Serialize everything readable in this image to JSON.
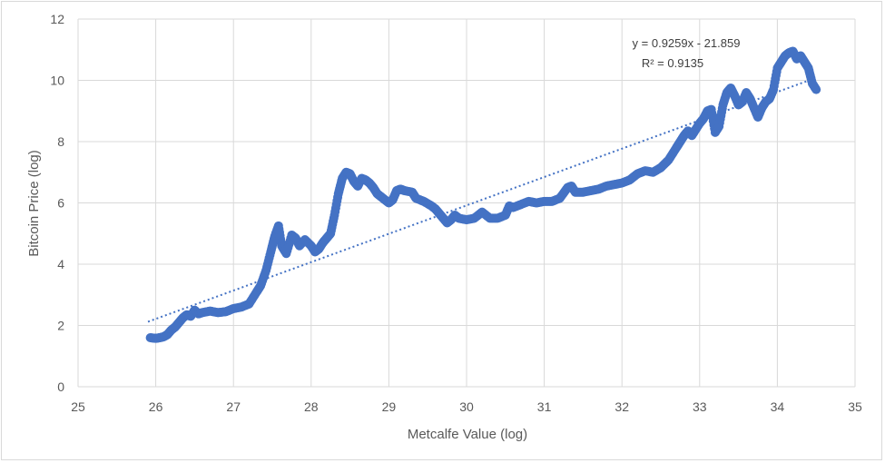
{
  "chart_data": {
    "type": "scatter",
    "title": "",
    "xlabel": "Metcalfe Value (log)",
    "ylabel": "Bitcoin Price (log)",
    "xlim": [
      25,
      35
    ],
    "ylim": [
      0,
      12
    ],
    "x_ticks": [
      "25",
      "26",
      "27",
      "28",
      "29",
      "30",
      "31",
      "32",
      "33",
      "34",
      "35"
    ],
    "y_ticks": [
      "0",
      "2",
      "4",
      "6",
      "8",
      "10",
      "12"
    ],
    "grid": true,
    "legend": "none",
    "colors": {
      "points": "#4472C4",
      "trendline": "#4472C4",
      "grid": "#d9d9d9",
      "text": "#595959"
    },
    "trendline": {
      "type": "linear",
      "slope": 0.9259,
      "intercept": -21.859,
      "x_range": [
        25.9,
        34.5
      ],
      "equation_label": "y = 0.9259x - 21.859",
      "r2_label": "R² = 0.9135"
    },
    "series": [
      {
        "values": [
          [
            25.93,
            1.6
          ],
          [
            26.0,
            1.58
          ],
          [
            26.05,
            1.6
          ],
          [
            26.1,
            1.63
          ],
          [
            26.15,
            1.7
          ],
          [
            26.2,
            1.85
          ],
          [
            26.25,
            1.95
          ],
          [
            26.3,
            2.1
          ],
          [
            26.35,
            2.25
          ],
          [
            26.4,
            2.35
          ],
          [
            26.45,
            2.3
          ],
          [
            26.5,
            2.5
          ],
          [
            26.55,
            2.38
          ],
          [
            26.6,
            2.42
          ],
          [
            26.7,
            2.47
          ],
          [
            26.8,
            2.42
          ],
          [
            26.9,
            2.45
          ],
          [
            27.0,
            2.55
          ],
          [
            27.1,
            2.6
          ],
          [
            27.2,
            2.7
          ],
          [
            27.3,
            3.1
          ],
          [
            27.35,
            3.3
          ],
          [
            27.42,
            3.8
          ],
          [
            27.48,
            4.4
          ],
          [
            27.53,
            4.9
          ],
          [
            27.58,
            5.25
          ],
          [
            27.62,
            4.6
          ],
          [
            27.68,
            4.35
          ],
          [
            27.75,
            4.95
          ],
          [
            27.8,
            4.85
          ],
          [
            27.85,
            4.6
          ],
          [
            27.92,
            4.8
          ],
          [
            28.0,
            4.6
          ],
          [
            28.05,
            4.4
          ],
          [
            28.1,
            4.5
          ],
          [
            28.15,
            4.7
          ],
          [
            28.2,
            4.85
          ],
          [
            28.25,
            5.0
          ],
          [
            28.3,
            5.6
          ],
          [
            28.35,
            6.3
          ],
          [
            28.4,
            6.8
          ],
          [
            28.45,
            7.0
          ],
          [
            28.5,
            6.95
          ],
          [
            28.55,
            6.7
          ],
          [
            28.6,
            6.55
          ],
          [
            28.65,
            6.8
          ],
          [
            28.7,
            6.75
          ],
          [
            28.75,
            6.65
          ],
          [
            28.8,
            6.5
          ],
          [
            28.85,
            6.3
          ],
          [
            28.9,
            6.2
          ],
          [
            28.95,
            6.1
          ],
          [
            29.0,
            6.0
          ],
          [
            29.05,
            6.1
          ],
          [
            29.1,
            6.4
          ],
          [
            29.15,
            6.45
          ],
          [
            29.2,
            6.4
          ],
          [
            29.3,
            6.35
          ],
          [
            29.35,
            6.15
          ],
          [
            29.45,
            6.05
          ],
          [
            29.55,
            5.9
          ],
          [
            29.6,
            5.8
          ],
          [
            29.65,
            5.65
          ],
          [
            29.7,
            5.5
          ],
          [
            29.75,
            5.35
          ],
          [
            29.8,
            5.45
          ],
          [
            29.85,
            5.6
          ],
          [
            29.9,
            5.5
          ],
          [
            30.0,
            5.45
          ],
          [
            30.1,
            5.5
          ],
          [
            30.2,
            5.7
          ],
          [
            30.3,
            5.5
          ],
          [
            30.4,
            5.5
          ],
          [
            30.5,
            5.6
          ],
          [
            30.55,
            5.9
          ],
          [
            30.6,
            5.85
          ],
          [
            30.7,
            5.95
          ],
          [
            30.8,
            6.05
          ],
          [
            30.9,
            6.0
          ],
          [
            31.0,
            6.05
          ],
          [
            31.1,
            6.05
          ],
          [
            31.2,
            6.15
          ],
          [
            31.3,
            6.5
          ],
          [
            31.35,
            6.55
          ],
          [
            31.4,
            6.35
          ],
          [
            31.5,
            6.35
          ],
          [
            31.6,
            6.4
          ],
          [
            31.7,
            6.45
          ],
          [
            31.8,
            6.55
          ],
          [
            31.9,
            6.6
          ],
          [
            32.0,
            6.65
          ],
          [
            32.1,
            6.75
          ],
          [
            32.2,
            6.95
          ],
          [
            32.3,
            7.05
          ],
          [
            32.4,
            7.0
          ],
          [
            32.5,
            7.15
          ],
          [
            32.6,
            7.4
          ],
          [
            32.7,
            7.8
          ],
          [
            32.75,
            8.0
          ],
          [
            32.8,
            8.2
          ],
          [
            32.85,
            8.35
          ],
          [
            32.9,
            8.2
          ],
          [
            32.95,
            8.4
          ],
          [
            33.0,
            8.6
          ],
          [
            33.05,
            8.75
          ],
          [
            33.1,
            9.0
          ],
          [
            33.15,
            9.05
          ],
          [
            33.2,
            8.3
          ],
          [
            33.25,
            8.5
          ],
          [
            33.3,
            9.2
          ],
          [
            33.35,
            9.6
          ],
          [
            33.4,
            9.75
          ],
          [
            33.45,
            9.5
          ],
          [
            33.5,
            9.2
          ],
          [
            33.55,
            9.3
          ],
          [
            33.6,
            9.6
          ],
          [
            33.65,
            9.4
          ],
          [
            33.7,
            9.1
          ],
          [
            33.75,
            8.8
          ],
          [
            33.8,
            9.1
          ],
          [
            33.85,
            9.3
          ],
          [
            33.9,
            9.4
          ],
          [
            33.95,
            9.7
          ],
          [
            34.0,
            10.4
          ],
          [
            34.05,
            10.6
          ],
          [
            34.1,
            10.8
          ],
          [
            34.15,
            10.9
          ],
          [
            34.2,
            10.95
          ],
          [
            34.25,
            10.7
          ],
          [
            34.3,
            10.8
          ],
          [
            34.35,
            10.6
          ],
          [
            34.4,
            10.4
          ],
          [
            34.45,
            9.9
          ],
          [
            34.5,
            9.7
          ]
        ]
      }
    ]
  }
}
